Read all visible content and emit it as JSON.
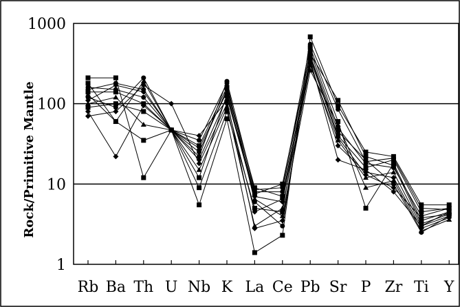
{
  "chart_data": {
    "type": "line",
    "title": "",
    "xlabel": "",
    "ylabel": "Rock/Primitive Mantle",
    "yscale": "log",
    "ylim": [
      1,
      1000
    ],
    "yticks": [
      "1",
      "10",
      "100",
      "1000"
    ],
    "grid": "horizontal-major",
    "legend": "none",
    "line_color": "#000000",
    "categories": [
      "Rb",
      "Ba",
      "Th",
      "U",
      "Nb",
      "K",
      "La",
      "Ce",
      "Pb",
      "Sr",
      "P",
      "Zr",
      "Ti",
      "Y"
    ],
    "series": [
      {
        "marker": "square",
        "values": [
          210,
          210,
          12,
          47,
          5.5,
          65,
          1.4,
          2.3,
          680,
          95,
          25,
          22,
          5.5,
          5.5
        ]
      },
      {
        "marker": "square",
        "values": [
          180,
          60,
          35,
          47,
          9,
          80,
          5,
          4.5,
          500,
          60,
          5,
          18,
          3.5,
          4.5
        ]
      },
      {
        "marker": "diamond",
        "values": [
          80,
          22,
          95,
          47,
          20,
          120,
          7,
          6,
          350,
          20,
          15,
          8,
          3,
          4
        ]
      },
      {
        "marker": "circle",
        "values": [
          120,
          90,
          210,
          47,
          35,
          180,
          6,
          3,
          400,
          45,
          20,
          10,
          2.5,
          4
        ]
      },
      {
        "marker": "triangle",
        "values": [
          100,
          120,
          55,
          47,
          15,
          90,
          3,
          5,
          300,
          35,
          12,
          14,
          3,
          4.5
        ]
      },
      {
        "marker": "circle",
        "values": [
          150,
          180,
          150,
          47,
          25,
          150,
          8,
          8,
          450,
          50,
          18,
          16,
          4,
          5
        ]
      },
      {
        "marker": "square",
        "values": [
          140,
          140,
          100,
          47,
          30,
          160,
          9,
          7,
          380,
          40,
          16,
          20,
          4.5,
          5
        ]
      },
      {
        "marker": "diamond",
        "values": [
          70,
          80,
          170,
          100,
          18,
          100,
          4.5,
          6.5,
          320,
          30,
          14,
          12,
          2.8,
          3.8
        ]
      },
      {
        "marker": "square",
        "values": [
          90,
          100,
          80,
          47,
          12,
          130,
          7.5,
          10,
          420,
          110,
          22,
          17,
          3.2,
          4.2
        ]
      },
      {
        "marker": "circle",
        "values": [
          160,
          150,
          120,
          47,
          22,
          190,
          8.5,
          9,
          550,
          85,
          19,
          21,
          5,
          4.8
        ]
      },
      {
        "marker": "triangle",
        "values": [
          130,
          60,
          190,
          47,
          28,
          140,
          6.5,
          4,
          260,
          55,
          9,
          11,
          2.6,
          3.6
        ]
      },
      {
        "marker": "diamond",
        "values": [
          110,
          170,
          140,
          47,
          40,
          110,
          2.8,
          3.5,
          360,
          38,
          13,
          9,
          3.8,
          4.2
        ]
      }
    ]
  }
}
